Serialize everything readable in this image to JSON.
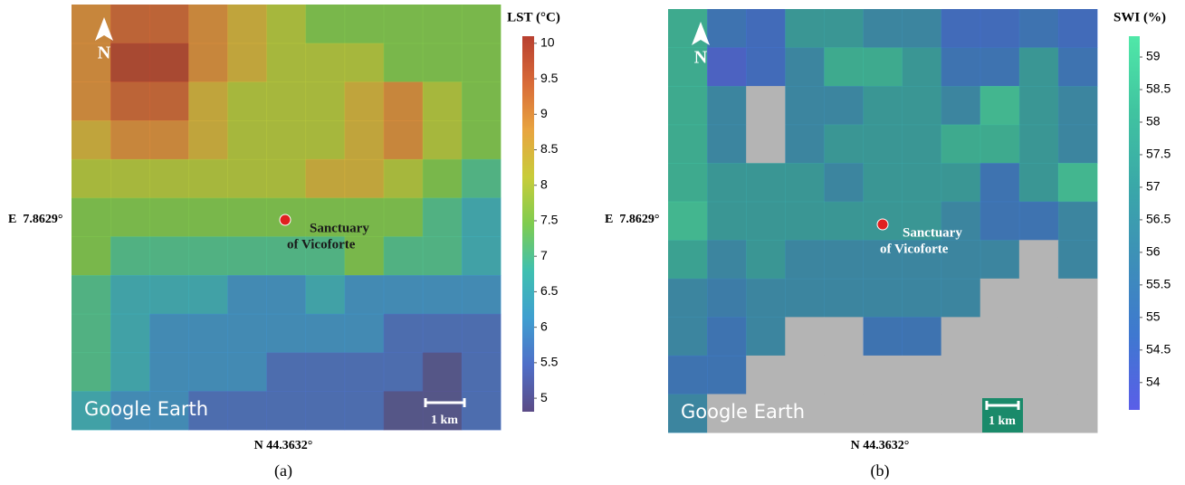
{
  "panels": [
    {
      "label": "(a)",
      "north": "N",
      "site": [
        "Sanctuary",
        "of Vicoforte"
      ],
      "lon": "E  7.8629°",
      "lat": "N 44.3632°",
      "watermark": "Google Earth",
      "scale": "1 km",
      "colorbar": {
        "title": "LST (°C)",
        "lim": [
          4.81,
          10.1
        ],
        "ticks": [
          5,
          5.5,
          6,
          6.5,
          7,
          7.5,
          8,
          8.5,
          9,
          9.5,
          10
        ],
        "colormap": [
          "#5b4b86",
          "#4f6fc8",
          "#3f9fd0",
          "#3fc0b0",
          "#7fcc50",
          "#c8cc3a",
          "#e8a440",
          "#d86a38",
          "#b84030"
        ]
      },
      "cells": [
        [
          9,
          9.5,
          9.5,
          9,
          8.5,
          8,
          7.5,
          7.5,
          7.5,
          7.5,
          7.5
        ],
        [
          9,
          10,
          10,
          9,
          8.5,
          8,
          8,
          8,
          7.5,
          7.5,
          7.5
        ],
        [
          9,
          9.5,
          9.5,
          8.5,
          8,
          8,
          8,
          8.5,
          9,
          8,
          7.5
        ],
        [
          8.5,
          9,
          9,
          8.5,
          8,
          8,
          8,
          8.5,
          9,
          8,
          7.5
        ],
        [
          8,
          8,
          8,
          8,
          8,
          8,
          8.5,
          8.5,
          8,
          7.5,
          7
        ],
        [
          7.5,
          7.5,
          7.5,
          7.5,
          7.5,
          7.5,
          7.5,
          7.5,
          7.5,
          7,
          6.5
        ],
        [
          7.5,
          7,
          7,
          7,
          7,
          7,
          7,
          7.5,
          7,
          7,
          6.5
        ],
        [
          7,
          6.5,
          6.5,
          6.5,
          6,
          6,
          6.5,
          6,
          6,
          6,
          6
        ],
        [
          7,
          6.5,
          6,
          6,
          6,
          6,
          6,
          6,
          5.5,
          5.5,
          5.5
        ],
        [
          7,
          6.5,
          6,
          6,
          6,
          5.5,
          5.5,
          5.5,
          5.5,
          5,
          5.5
        ],
        [
          6.5,
          6,
          6,
          5.5,
          5.5,
          5.5,
          5.5,
          5.5,
          5,
          5,
          5.5
        ]
      ]
    },
    {
      "label": "(b)",
      "north": "N",
      "site": [
        "Sanctuary",
        "of Vicoforte"
      ],
      "lon": "E  7.8629°",
      "lat": "N 44.3632°",
      "watermark": "Google Earth",
      "scale": "1 km",
      "colorbar": {
        "title": "SWI (%)",
        "lim": [
          53.58,
          59.32
        ],
        "ticks": [
          54,
          54.5,
          55,
          55.5,
          56,
          56.5,
          57,
          57.5,
          58,
          58.5,
          59
        ],
        "colormap": [
          "#5a5ee8",
          "#3f78d0",
          "#3d8fb8",
          "#3aa8a8",
          "#40c4a0",
          "#50e8a8"
        ]
      },
      "cells": [
        [
          58,
          55,
          54.5,
          57,
          57,
          56,
          56,
          54.5,
          54.5,
          55,
          54.5
        ],
        [
          58,
          54,
          54.5,
          56,
          58,
          58,
          57,
          55,
          55,
          57,
          55
        ],
        [
          58,
          56,
          null,
          56,
          56,
          57,
          57,
          56,
          58.5,
          57,
          56
        ],
        [
          58,
          56,
          null,
          56,
          57,
          57,
          57,
          58,
          58,
          57,
          56
        ],
        [
          58,
          57,
          57,
          57,
          56,
          57,
          57,
          57,
          55,
          57,
          58.5
        ],
        [
          58.5,
          57,
          57,
          57,
          57,
          57,
          57,
          56,
          55,
          55,
          56
        ],
        [
          57.5,
          56,
          57,
          56,
          56,
          56,
          56,
          56,
          56,
          null,
          56
        ],
        [
          56,
          55.5,
          56,
          56,
          56,
          56,
          56,
          56,
          null,
          null,
          null
        ],
        [
          56,
          55,
          56,
          null,
          null,
          55,
          55,
          null,
          null,
          null,
          null
        ],
        [
          55,
          55,
          null,
          null,
          null,
          null,
          null,
          null,
          null,
          null,
          null
        ],
        [
          56,
          null,
          null,
          null,
          null,
          null,
          null,
          null,
          null,
          null,
          null
        ]
      ]
    }
  ]
}
